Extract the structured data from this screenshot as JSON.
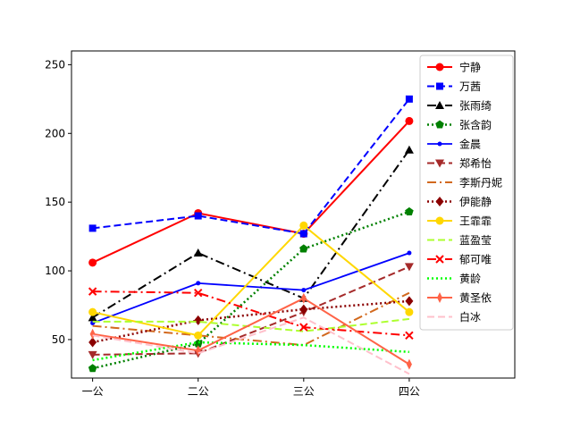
{
  "chart_data": {
    "type": "line",
    "categories": [
      "一公",
      "二公",
      "三公",
      "四公"
    ],
    "xlim": [
      -0.2,
      4.0
    ],
    "ylim": [
      22,
      260
    ],
    "yticks": [
      50,
      100,
      150,
      200,
      250
    ],
    "grid": false,
    "legend_position": "top-right",
    "series": [
      {
        "name": "宁静",
        "values": [
          106,
          142,
          127,
          209
        ],
        "color": "#ff0000",
        "dash": "solid",
        "marker": "circle",
        "width": 2
      },
      {
        "name": "万茜",
        "values": [
          131,
          140,
          127,
          225
        ],
        "color": "#0000ff",
        "dash": "dashed",
        "marker": "square",
        "width": 2
      },
      {
        "name": "张雨绮",
        "values": [
          66,
          113,
          80,
          188
        ],
        "color": "#000000",
        "dash": "dashdot",
        "marker": "triangle-up",
        "width": 2
      },
      {
        "name": "张含韵",
        "values": [
          29,
          47,
          116,
          143
        ],
        "color": "#008000",
        "dash": "dotted",
        "marker": "pentagon",
        "width": 2.5
      },
      {
        "name": "金晨",
        "values": [
          62,
          91,
          86,
          113
        ],
        "color": "#0000ff",
        "dash": "solid",
        "marker": "dot",
        "width": 1.8
      },
      {
        "name": "郑希怡",
        "values": [
          39,
          40,
          70,
          103
        ],
        "color": "#a52a2a",
        "dash": "dashed",
        "marker": "triangle-down",
        "width": 2
      },
      {
        "name": "李斯丹妮",
        "values": [
          60,
          53,
          46,
          84
        ],
        "color": "#d2691e",
        "dash": "dashdot",
        "marker": "none",
        "width": 2
      },
      {
        "name": "伊能静",
        "values": [
          48,
          64,
          72,
          78
        ],
        "color": "#8b0000",
        "dash": "dotted",
        "marker": "diamond",
        "width": 2.5
      },
      {
        "name": "王霏霏",
        "values": [
          70,
          53,
          133,
          70
        ],
        "color": "#ffd700",
        "dash": "solid",
        "marker": "circle",
        "width": 2
      },
      {
        "name": "蓝盈莹",
        "values": [
          63,
          63,
          56,
          65
        ],
        "color": "#adff2f",
        "dash": "dashed",
        "marker": "none",
        "width": 2
      },
      {
        "name": "郁可唯",
        "values": [
          85,
          84,
          59,
          53
        ],
        "color": "#ff0000",
        "dash": "dashdot",
        "marker": "x",
        "width": 2
      },
      {
        "name": "黄龄",
        "values": [
          35,
          48,
          46,
          41
        ],
        "color": "#00ff00",
        "dash": "dotted",
        "marker": "none",
        "width": 2.5
      },
      {
        "name": "黄圣依",
        "values": [
          54,
          42,
          80,
          32
        ],
        "color": "#ff6347",
        "dash": "solid",
        "marker": "thin-diamond",
        "width": 2
      },
      {
        "name": "白冰",
        "values": [
          53,
          40,
          66,
          25
        ],
        "color": "#ffc0cb",
        "dash": "dashed",
        "marker": "none",
        "width": 2
      }
    ]
  }
}
